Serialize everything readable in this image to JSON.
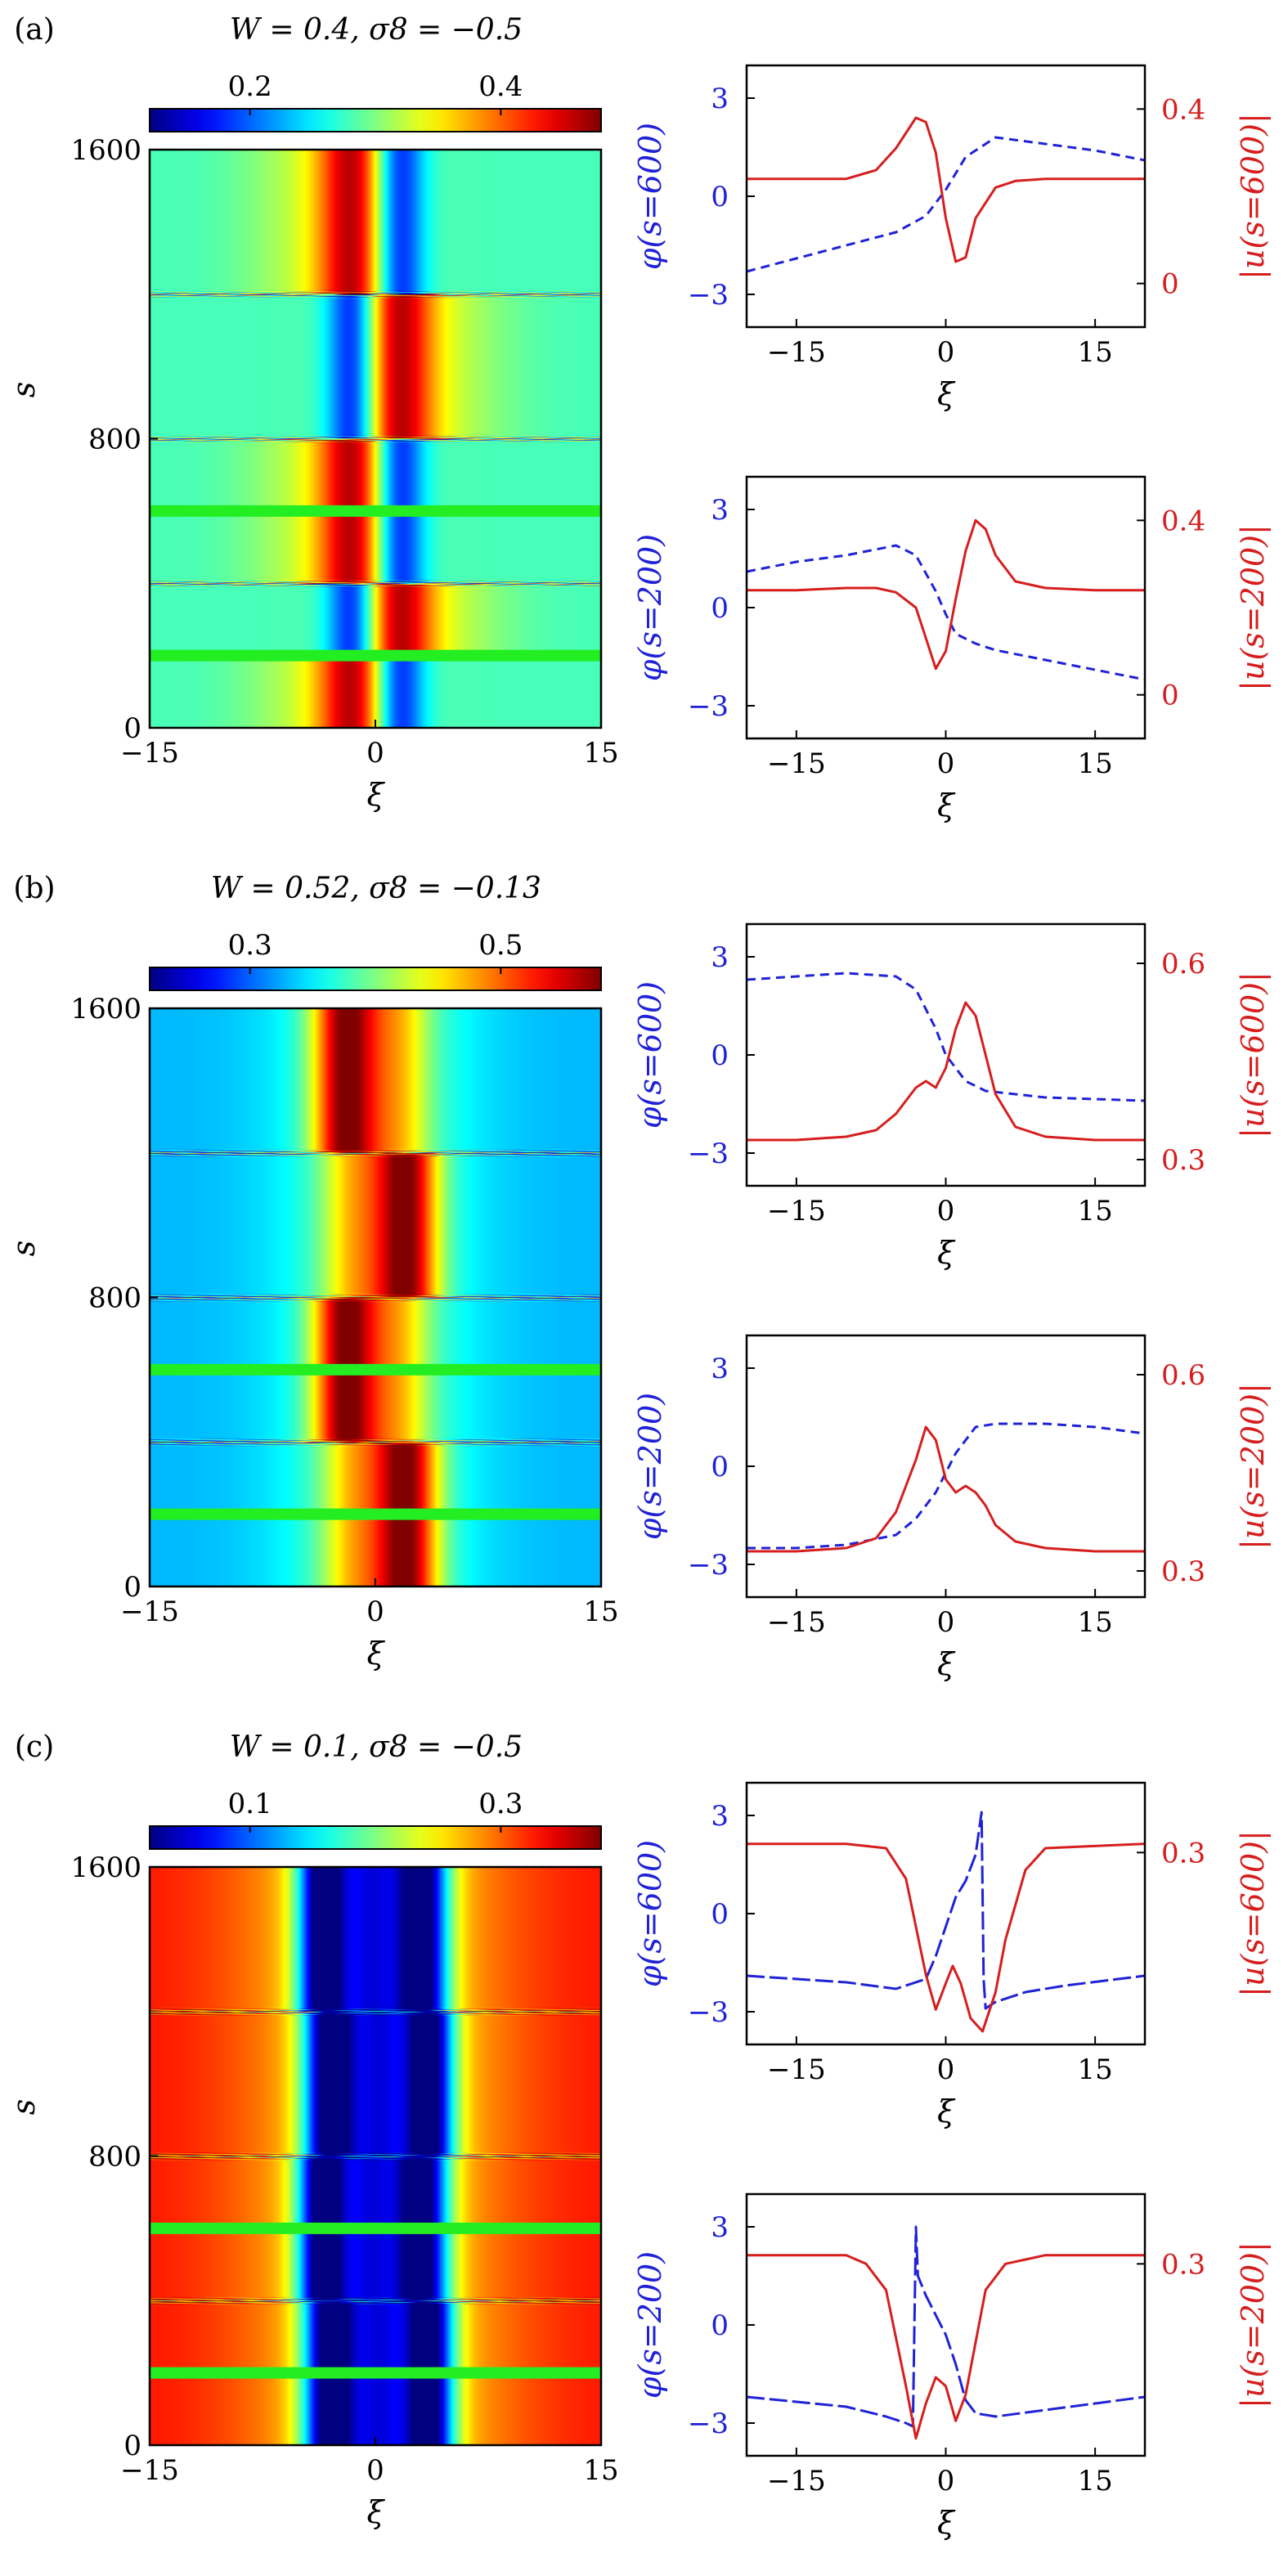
{
  "colors": {
    "blue": "#1f22d6",
    "red": "#d61e1e",
    "marker": "#22ee22"
  },
  "chart_data": [
    {
      "panel": "(a)",
      "type": "heatmap",
      "title": "W = 0.4, σ8 = −0.5",
      "colorbar_ticks": [
        0.2,
        0.4
      ],
      "colorbar_range": [
        0.12,
        0.48
      ],
      "xlabel": "ξ",
      "ylabel": "s",
      "xlim": [
        -15,
        15
      ],
      "ylim": [
        0,
        1600
      ],
      "xticks": [
        -15,
        0,
        15
      ],
      "yticks": [
        0,
        800,
        1600
      ],
      "background": 0.28,
      "profile": [
        {
          "c": -1.5,
          "a": 0.14,
          "w": 1.6
        },
        {
          "c": 1.5,
          "a": -0.13,
          "w": 1.2
        },
        {
          "c": -3.5,
          "a": 0.05,
          "w": 3.5
        }
      ],
      "flips": [
        200,
        400,
        800,
        1200
      ],
      "markers": [
        200,
        600
      ],
      "lines": [
        {
          "type": "line",
          "xlim": [
            -20,
            20
          ],
          "ylim_left": [
            -4,
            4
          ],
          "ylim_right": [
            -0.1,
            0.5
          ],
          "xticks": [
            -15,
            0,
            15
          ],
          "yticks_left": [
            -3,
            0,
            3
          ],
          "yticks_right": [
            0,
            0.4
          ],
          "xlabel": "ξ",
          "ylabel_left": "φ(s=600)",
          "ylabel_right": "|u(s=600)|",
          "series": [
            {
              "axis": "left",
              "style": "dashed",
              "x": [
                -20,
                -15,
                -10,
                -5,
                -2,
                0,
                2,
                5,
                10,
                15,
                20
              ],
              "y": [
                -2.3,
                -1.9,
                -1.5,
                -1.1,
                -0.6,
                0.2,
                1.2,
                1.8,
                1.6,
                1.4,
                1.1
              ]
            },
            {
              "axis": "right",
              "style": "solid",
              "x": [
                -20,
                -15,
                -10,
                -7,
                -5,
                -3,
                -2,
                -1,
                0,
                1,
                2,
                3,
                5,
                7,
                10,
                15,
                20
              ],
              "y": [
                0.24,
                0.24,
                0.24,
                0.26,
                0.31,
                0.38,
                0.37,
                0.3,
                0.15,
                0.05,
                0.06,
                0.15,
                0.22,
                0.235,
                0.24,
                0.24,
                0.24
              ]
            }
          ]
        },
        {
          "type": "line",
          "xlim": [
            -20,
            20
          ],
          "ylim_left": [
            -4,
            4
          ],
          "ylim_right": [
            -0.1,
            0.5
          ],
          "xticks": [
            -15,
            0,
            15
          ],
          "yticks_left": [
            -3,
            0,
            3
          ],
          "yticks_right": [
            0,
            0.4
          ],
          "xlabel": "ξ",
          "ylabel_left": "φ(s=200)",
          "ylabel_right": "|u(s=200)|",
          "series": [
            {
              "axis": "left",
              "style": "dashed",
              "x": [
                -20,
                -15,
                -10,
                -5,
                -3,
                -1,
                0,
                1,
                3,
                5,
                10,
                15,
                20
              ],
              "y": [
                1.1,
                1.4,
                1.6,
                1.9,
                1.6,
                0.5,
                -0.2,
                -0.8,
                -1.1,
                -1.3,
                -1.6,
                -1.9,
                -2.2
              ]
            },
            {
              "axis": "right",
              "style": "solid",
              "x": [
                -20,
                -15,
                -10,
                -7,
                -5,
                -3,
                -2,
                -1,
                0,
                1,
                2,
                3,
                4,
                5,
                7,
                10,
                15,
                20
              ],
              "y": [
                0.24,
                0.24,
                0.245,
                0.245,
                0.235,
                0.2,
                0.13,
                0.06,
                0.1,
                0.22,
                0.33,
                0.4,
                0.38,
                0.32,
                0.26,
                0.245,
                0.24,
                0.24
              ]
            }
          ]
        }
      ]
    },
    {
      "panel": "(b)",
      "type": "heatmap",
      "title": "W = 0.52, σ8 = −0.13",
      "colorbar_ticks": [
        0.3,
        0.5
      ],
      "colorbar_range": [
        0.22,
        0.58
      ],
      "xlabel": "ξ",
      "ylabel": "s",
      "xlim": [
        -15,
        15
      ],
      "ylim": [
        0,
        1600
      ],
      "xticks": [
        -15,
        0,
        15
      ],
      "yticks": [
        0,
        800,
        1600
      ],
      "background": 0.33,
      "profile": [
        {
          "c": 2.0,
          "a": 0.2,
          "w": 1.5
        },
        {
          "c": -1.5,
          "a": 0.08,
          "w": 1.5
        },
        {
          "c": 0.0,
          "a": 0.06,
          "w": 4.5
        }
      ],
      "flips": [
        400,
        800,
        1200
      ],
      "markers": [
        200,
        600
      ],
      "lines": [
        {
          "type": "line",
          "xlim": [
            -20,
            20
          ],
          "ylim_left": [
            -4,
            4
          ],
          "ylim_right": [
            0.26,
            0.66
          ],
          "xticks": [
            -15,
            0,
            15
          ],
          "yticks_left": [
            -3,
            0,
            3
          ],
          "yticks_right": [
            0.3,
            0.6
          ],
          "xlabel": "ξ",
          "ylabel_left": "φ(s=600)",
          "ylabel_right": "|u(s=600)|",
          "series": [
            {
              "axis": "left",
              "style": "dashed",
              "x": [
                -20,
                -15,
                -10,
                -5,
                -3,
                -1,
                0,
                2,
                4,
                7,
                10,
                15,
                20
              ],
              "y": [
                2.3,
                2.4,
                2.5,
                2.4,
                2.0,
                0.8,
                0.0,
                -0.8,
                -1.1,
                -1.2,
                -1.3,
                -1.35,
                -1.4
              ]
            },
            {
              "axis": "right",
              "style": "solid",
              "x": [
                -20,
                -15,
                -10,
                -7,
                -5,
                -3,
                -2,
                -1,
                0,
                1,
                2,
                3,
                4,
                5,
                7,
                10,
                15,
                20
              ],
              "y": [
                0.33,
                0.33,
                0.335,
                0.345,
                0.37,
                0.41,
                0.42,
                0.41,
                0.44,
                0.5,
                0.54,
                0.52,
                0.46,
                0.4,
                0.35,
                0.335,
                0.33,
                0.33
              ]
            }
          ]
        },
        {
          "type": "line",
          "xlim": [
            -20,
            20
          ],
          "ylim_left": [
            -4,
            4
          ],
          "ylim_right": [
            0.26,
            0.66
          ],
          "xticks": [
            -15,
            0,
            15
          ],
          "yticks_left": [
            -3,
            0,
            3
          ],
          "yticks_right": [
            0.3,
            0.6
          ],
          "xlabel": "ξ",
          "ylabel_left": "φ(s=200)",
          "ylabel_right": "|u(s=200)|",
          "series": [
            {
              "axis": "left",
              "style": "dashed",
              "x": [
                -20,
                -15,
                -10,
                -5,
                -3,
                -1,
                0,
                1,
                3,
                5,
                10,
                15,
                20
              ],
              "y": [
                -2.5,
                -2.5,
                -2.4,
                -2.1,
                -1.6,
                -0.8,
                -0.2,
                0.4,
                1.2,
                1.3,
                1.3,
                1.2,
                1.0
              ]
            },
            {
              "axis": "right",
              "style": "solid",
              "x": [
                -20,
                -15,
                -10,
                -7,
                -5,
                -3,
                -2,
                -1,
                0,
                1,
                2,
                3,
                4,
                5,
                7,
                10,
                15,
                20
              ],
              "y": [
                0.33,
                0.33,
                0.335,
                0.35,
                0.39,
                0.47,
                0.52,
                0.5,
                0.44,
                0.42,
                0.43,
                0.42,
                0.4,
                0.37,
                0.345,
                0.335,
                0.33,
                0.33
              ]
            }
          ]
        }
      ]
    },
    {
      "panel": "(c)",
      "type": "heatmap",
      "title": "W = 0.1, σ8 = −0.5",
      "colorbar_ticks": [
        0.1,
        0.3
      ],
      "colorbar_range": [
        0.02,
        0.38
      ],
      "xlabel": "ξ",
      "ylabel": "s",
      "xlim": [
        -15,
        15
      ],
      "ylim": [
        0,
        1600
      ],
      "xticks": [
        -15,
        0,
        15
      ],
      "yticks": [
        0,
        800,
        1600
      ],
      "background": 0.33,
      "profile": [
        {
          "c": -3.0,
          "a": -0.27,
          "w": 1.3
        },
        {
          "c": 3.5,
          "a": -0.27,
          "w": 1.2
        },
        {
          "c": 0.3,
          "a": -0.17,
          "w": 1.3
        },
        {
          "c": 0.3,
          "a": -0.09,
          "w": 6.0
        }
      ],
      "flips": [
        400,
        800,
        1200
      ],
      "markers": [
        200,
        600
      ],
      "lines": [
        {
          "type": "line",
          "xlim": [
            -20,
            20
          ],
          "ylim_left": [
            -4,
            4
          ],
          "ylim_right": [
            0.08,
            0.38
          ],
          "xticks": [
            -15,
            0,
            15
          ],
          "yticks_left": [
            -3,
            0,
            3
          ],
          "yticks_right": [
            0.3
          ],
          "xlabel": "ξ",
          "ylabel_left": "φ(s=600)",
          "ylabel_right": "|u(s=600)|",
          "series": [
            {
              "axis": "left",
              "style": "dashed",
              "x": [
                -20,
                -10,
                -5,
                -2,
                -1,
                0,
                1,
                2,
                3,
                3.6,
                3.8,
                4.0,
                5,
                8,
                12,
                20
              ],
              "y": [
                -1.9,
                -2.1,
                -2.3,
                -2.0,
                -1.3,
                -0.4,
                0.5,
                1.0,
                1.8,
                3.1,
                -2.0,
                -2.9,
                -2.7,
                -2.4,
                -2.2,
                -1.9
              ]
            },
            {
              "axis": "right",
              "style": "solid",
              "x": [
                -20,
                -10,
                -6,
                -4,
                -2,
                -1,
                0,
                0.7,
                1.5,
                2.5,
                3.7,
                5,
                6,
                8,
                10,
                20
              ],
              "y": [
                0.31,
                0.31,
                0.305,
                0.27,
                0.16,
                0.12,
                0.15,
                0.17,
                0.15,
                0.11,
                0.095,
                0.14,
                0.2,
                0.28,
                0.305,
                0.31
              ]
            }
          ]
        },
        {
          "type": "line",
          "xlim": [
            -20,
            20
          ],
          "ylim_left": [
            -4,
            4
          ],
          "ylim_right": [
            0.08,
            0.38
          ],
          "xticks": [
            -15,
            0,
            15
          ],
          "yticks_left": [
            -3,
            0,
            3
          ],
          "yticks_right": [
            0.3
          ],
          "xlabel": "ξ",
          "ylabel_left": "φ(s=200)",
          "ylabel_right": "|u(s=200)|",
          "series": [
            {
              "axis": "left",
              "style": "dashed",
              "x": [
                -20,
                -10,
                -6,
                -4,
                -3.3,
                -3.0,
                -2.8,
                -2,
                -1,
                0,
                1,
                2,
                3,
                5,
                10,
                20
              ],
              "y": [
                -2.2,
                -2.5,
                -2.8,
                -3.0,
                -3.1,
                3.0,
                1.5,
                0.9,
                0.3,
                -0.3,
                -1.2,
                -2.3,
                -2.7,
                -2.8,
                -2.6,
                -2.2
              ]
            },
            {
              "axis": "right",
              "style": "solid",
              "x": [
                -20,
                -10,
                -8,
                -6,
                -4,
                -3,
                -2,
                -1,
                0,
                1,
                2,
                4,
                6,
                8,
                10,
                20
              ],
              "y": [
                0.31,
                0.31,
                0.3,
                0.27,
                0.16,
                0.1,
                0.14,
                0.17,
                0.16,
                0.12,
                0.15,
                0.27,
                0.3,
                0.305,
                0.31,
                0.31
              ]
            }
          ]
        }
      ]
    }
  ]
}
